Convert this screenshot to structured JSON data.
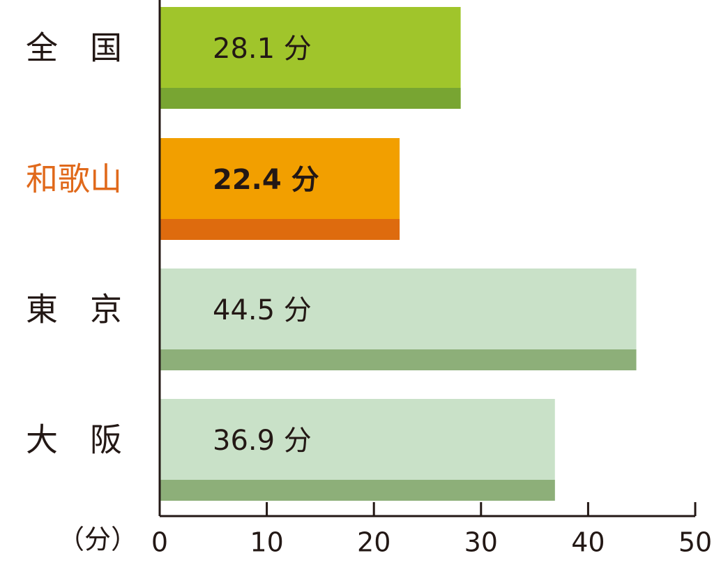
{
  "chart_data": {
    "type": "bar",
    "orientation": "horizontal",
    "categories": [
      "全　国",
      "和歌山",
      "東　京",
      "大　阪"
    ],
    "values": [
      28.1,
      22.4,
      44.5,
      36.9
    ],
    "value_labels": [
      "28.1 分",
      "22.4 分",
      "44.5 分",
      "36.9 分"
    ],
    "colors": [
      "#a0c52b",
      "#f29f00",
      "#c9e1c8",
      "#c9e1c8"
    ],
    "shade_colors": [
      "#78a532",
      "#de6b0e",
      "#8daf79",
      "#8daf79"
    ],
    "highlight": 1,
    "highlight_color": "#e0691b",
    "xlabel": "（分）",
    "xlim": [
      0,
      50
    ],
    "xticks": [
      0,
      10,
      20,
      30,
      40,
      50
    ]
  }
}
